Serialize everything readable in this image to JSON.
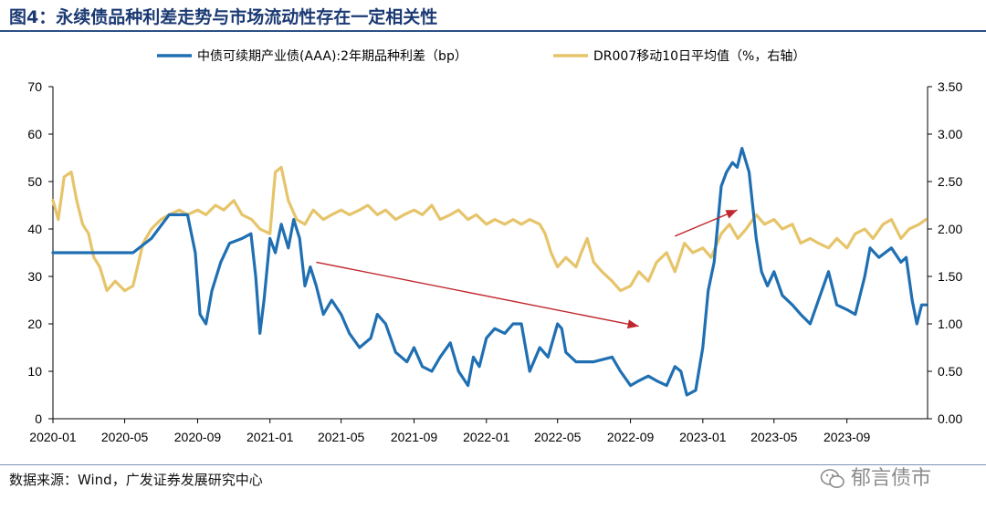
{
  "figure": {
    "title": "图4：永续债品种利差走势与市场流动性存在一定相关性",
    "source": "数据来源：Wind，广发证券发展研究中心",
    "watermark": "郁言债市"
  },
  "chart_data": {
    "type": "line",
    "x_ticks": [
      "2020-01",
      "2020-05",
      "2020-09",
      "2021-01",
      "2021-05",
      "2021-09",
      "2022-01",
      "2022-05",
      "2022-09",
      "2023-01",
      "2023-05",
      "2023-09"
    ],
    "y_left": {
      "range": [
        0,
        70
      ],
      "ticks": [
        "0",
        "10",
        "20",
        "30",
        "40",
        "50",
        "60",
        "70"
      ]
    },
    "y_right": {
      "range": [
        0,
        3.5
      ],
      "ticks": [
        "0.00",
        "0.50",
        "1.00",
        "1.50",
        "2.00",
        "2.50",
        "3.00",
        "3.50"
      ]
    },
    "legend_position": "top",
    "grid": false,
    "series": [
      {
        "name": "中债可续期产业债(AAA):2年期品种利差（bp）",
        "axis": "left",
        "color": "#1f6fb2",
        "points": [
          [
            "2020-01-01",
            35
          ],
          [
            "2020-05-15",
            35
          ],
          [
            "2020-06-15",
            38
          ],
          [
            "2020-07-15",
            43
          ],
          [
            "2020-08-15",
            43
          ],
          [
            "2020-08-28",
            35
          ],
          [
            "2020-09-05",
            22
          ],
          [
            "2020-09-15",
            20
          ],
          [
            "2020-09-25",
            27
          ],
          [
            "2020-10-10",
            33
          ],
          [
            "2020-10-25",
            37
          ],
          [
            "2020-11-15",
            38
          ],
          [
            "2020-11-30",
            39
          ],
          [
            "2020-12-08",
            30
          ],
          [
            "2020-12-15",
            18
          ],
          [
            "2020-12-22",
            25
          ],
          [
            "2021-01-01",
            38
          ],
          [
            "2021-01-10",
            35
          ],
          [
            "2021-01-20",
            41
          ],
          [
            "2021-02-01",
            36
          ],
          [
            "2021-02-10",
            42
          ],
          [
            "2021-02-20",
            38
          ],
          [
            "2021-03-01",
            28
          ],
          [
            "2021-03-10",
            32
          ],
          [
            "2021-03-20",
            28
          ],
          [
            "2021-04-01",
            22
          ],
          [
            "2021-04-15",
            25
          ],
          [
            "2021-05-01",
            22
          ],
          [
            "2021-05-15",
            18
          ],
          [
            "2021-06-01",
            15
          ],
          [
            "2021-06-20",
            17
          ],
          [
            "2021-07-01",
            22
          ],
          [
            "2021-07-15",
            20
          ],
          [
            "2021-08-01",
            14
          ],
          [
            "2021-08-20",
            12
          ],
          [
            "2021-09-01",
            15
          ],
          [
            "2021-09-15",
            11
          ],
          [
            "2021-10-01",
            10
          ],
          [
            "2021-10-15",
            13
          ],
          [
            "2021-11-01",
            16
          ],
          [
            "2021-11-15",
            10
          ],
          [
            "2021-12-01",
            7
          ],
          [
            "2021-12-10",
            13
          ],
          [
            "2021-12-20",
            11
          ],
          [
            "2022-01-01",
            17
          ],
          [
            "2022-01-15",
            19
          ],
          [
            "2022-02-01",
            18
          ],
          [
            "2022-02-15",
            20
          ],
          [
            "2022-03-01",
            20
          ],
          [
            "2022-03-15",
            10
          ],
          [
            "2022-04-01",
            15
          ],
          [
            "2022-04-15",
            13
          ],
          [
            "2022-05-01",
            20
          ],
          [
            "2022-05-08",
            19
          ],
          [
            "2022-05-15",
            14
          ],
          [
            "2022-06-01",
            12
          ],
          [
            "2022-07-01",
            12
          ],
          [
            "2022-08-01",
            13
          ],
          [
            "2022-08-15",
            10
          ],
          [
            "2022-09-01",
            7
          ],
          [
            "2022-09-15",
            8
          ],
          [
            "2022-10-01",
            9
          ],
          [
            "2022-10-15",
            8
          ],
          [
            "2022-11-01",
            7
          ],
          [
            "2022-11-15",
            11
          ],
          [
            "2022-11-25",
            10
          ],
          [
            "2022-12-05",
            5
          ],
          [
            "2022-12-20",
            6
          ],
          [
            "2023-01-01",
            15
          ],
          [
            "2023-01-10",
            27
          ],
          [
            "2023-01-20",
            33
          ],
          [
            "2023-02-01",
            49
          ],
          [
            "2023-02-10",
            52
          ],
          [
            "2023-02-20",
            54
          ],
          [
            "2023-02-28",
            53
          ],
          [
            "2023-03-08",
            57
          ],
          [
            "2023-03-20",
            52
          ],
          [
            "2023-04-01",
            38
          ],
          [
            "2023-04-10",
            31
          ],
          [
            "2023-04-20",
            28
          ],
          [
            "2023-05-01",
            31
          ],
          [
            "2023-05-15",
            26
          ],
          [
            "2023-06-01",
            24
          ],
          [
            "2023-06-15",
            22
          ],
          [
            "2023-07-01",
            20
          ],
          [
            "2023-07-15",
            25
          ],
          [
            "2023-08-01",
            31
          ],
          [
            "2023-08-15",
            24
          ],
          [
            "2023-09-01",
            23
          ],
          [
            "2023-09-15",
            22
          ],
          [
            "2023-10-01",
            30
          ],
          [
            "2023-10-10",
            36
          ],
          [
            "2023-10-25",
            34
          ],
          [
            "2023-11-15",
            36
          ],
          [
            "2023-12-01",
            33
          ],
          [
            "2023-12-10",
            34
          ],
          [
            "2023-12-20",
            25
          ],
          [
            "2023-12-28",
            20
          ],
          [
            "2024-01-05",
            24
          ],
          [
            "2024-01-12",
            24
          ]
        ]
      },
      {
        "name": "DR007移动10日平均值（%，右轴）",
        "axis": "right",
        "color": "#e6c46a",
        "points": [
          [
            "2020-01-01",
            2.3
          ],
          [
            "2020-01-10",
            2.1
          ],
          [
            "2020-01-20",
            2.55
          ],
          [
            "2020-02-01",
            2.6
          ],
          [
            "2020-02-10",
            2.3
          ],
          [
            "2020-02-20",
            2.05
          ],
          [
            "2020-03-01",
            1.95
          ],
          [
            "2020-03-10",
            1.7
          ],
          [
            "2020-03-20",
            1.6
          ],
          [
            "2020-04-01",
            1.35
          ],
          [
            "2020-04-15",
            1.45
          ],
          [
            "2020-05-01",
            1.35
          ],
          [
            "2020-05-15",
            1.4
          ],
          [
            "2020-06-01",
            1.85
          ],
          [
            "2020-06-15",
            2.0
          ],
          [
            "2020-07-01",
            2.1
          ],
          [
            "2020-07-15",
            2.15
          ],
          [
            "2020-08-01",
            2.2
          ],
          [
            "2020-08-15",
            2.15
          ],
          [
            "2020-09-01",
            2.2
          ],
          [
            "2020-09-15",
            2.15
          ],
          [
            "2020-10-01",
            2.25
          ],
          [
            "2020-10-15",
            2.2
          ],
          [
            "2020-11-01",
            2.3
          ],
          [
            "2020-11-15",
            2.15
          ],
          [
            "2020-12-01",
            2.1
          ],
          [
            "2020-12-15",
            2.0
          ],
          [
            "2021-01-01",
            1.95
          ],
          [
            "2021-01-10",
            2.6
          ],
          [
            "2021-01-20",
            2.65
          ],
          [
            "2021-02-01",
            2.3
          ],
          [
            "2021-02-15",
            2.1
          ],
          [
            "2021-03-01",
            2.05
          ],
          [
            "2021-03-15",
            2.2
          ],
          [
            "2021-04-01",
            2.1
          ],
          [
            "2021-04-15",
            2.15
          ],
          [
            "2021-05-01",
            2.2
          ],
          [
            "2021-05-15",
            2.15
          ],
          [
            "2021-06-01",
            2.2
          ],
          [
            "2021-06-15",
            2.25
          ],
          [
            "2021-07-01",
            2.15
          ],
          [
            "2021-07-15",
            2.2
          ],
          [
            "2021-08-01",
            2.1
          ],
          [
            "2021-08-15",
            2.15
          ],
          [
            "2021-09-01",
            2.2
          ],
          [
            "2021-09-15",
            2.15
          ],
          [
            "2021-10-01",
            2.25
          ],
          [
            "2021-10-15",
            2.1
          ],
          [
            "2021-11-01",
            2.15
          ],
          [
            "2021-11-15",
            2.2
          ],
          [
            "2021-12-01",
            2.1
          ],
          [
            "2021-12-15",
            2.15
          ],
          [
            "2022-01-01",
            2.05
          ],
          [
            "2022-01-15",
            2.1
          ],
          [
            "2022-02-01",
            2.05
          ],
          [
            "2022-02-15",
            2.1
          ],
          [
            "2022-03-01",
            2.05
          ],
          [
            "2022-03-15",
            2.1
          ],
          [
            "2022-04-01",
            2.05
          ],
          [
            "2022-04-10",
            1.95
          ],
          [
            "2022-04-20",
            1.75
          ],
          [
            "2022-05-01",
            1.6
          ],
          [
            "2022-05-15",
            1.7
          ],
          [
            "2022-06-01",
            1.6
          ],
          [
            "2022-06-10",
            1.75
          ],
          [
            "2022-06-20",
            1.9
          ],
          [
            "2022-07-01",
            1.65
          ],
          [
            "2022-07-15",
            1.55
          ],
          [
            "2022-08-01",
            1.45
          ],
          [
            "2022-08-15",
            1.35
          ],
          [
            "2022-09-01",
            1.4
          ],
          [
            "2022-09-15",
            1.55
          ],
          [
            "2022-10-01",
            1.45
          ],
          [
            "2022-10-15",
            1.65
          ],
          [
            "2022-11-01",
            1.75
          ],
          [
            "2022-11-15",
            1.55
          ],
          [
            "2022-12-01",
            1.85
          ],
          [
            "2022-12-15",
            1.75
          ],
          [
            "2023-01-01",
            1.8
          ],
          [
            "2023-01-15",
            1.7
          ],
          [
            "2023-02-01",
            1.95
          ],
          [
            "2023-02-15",
            2.05
          ],
          [
            "2023-03-01",
            1.9
          ],
          [
            "2023-03-15",
            2.0
          ],
          [
            "2023-04-01",
            2.15
          ],
          [
            "2023-04-15",
            2.05
          ],
          [
            "2023-05-01",
            2.1
          ],
          [
            "2023-05-15",
            2.0
          ],
          [
            "2023-06-01",
            2.05
          ],
          [
            "2023-06-15",
            1.85
          ],
          [
            "2023-07-01",
            1.9
          ],
          [
            "2023-07-15",
            1.85
          ],
          [
            "2023-08-01",
            1.8
          ],
          [
            "2023-08-15",
            1.9
          ],
          [
            "2023-09-01",
            1.8
          ],
          [
            "2023-09-15",
            1.95
          ],
          [
            "2023-10-01",
            2.0
          ],
          [
            "2023-10-15",
            1.9
          ],
          [
            "2023-11-01",
            2.05
          ],
          [
            "2023-11-15",
            2.1
          ],
          [
            "2023-12-01",
            1.9
          ],
          [
            "2023-12-15",
            2.0
          ],
          [
            "2024-01-01",
            2.05
          ],
          [
            "2024-01-12",
            2.1
          ]
        ]
      }
    ],
    "annotations": [
      {
        "type": "arrow",
        "color": "#c0272d",
        "from": [
          "2021-03-20",
          33
        ],
        "to": [
          "2022-09-15",
          19.5
        ]
      },
      {
        "type": "arrow",
        "color": "#c0272d",
        "from": [
          "2022-11-15",
          38.5
        ],
        "to": [
          "2023-02-28",
          44
        ]
      }
    ]
  }
}
